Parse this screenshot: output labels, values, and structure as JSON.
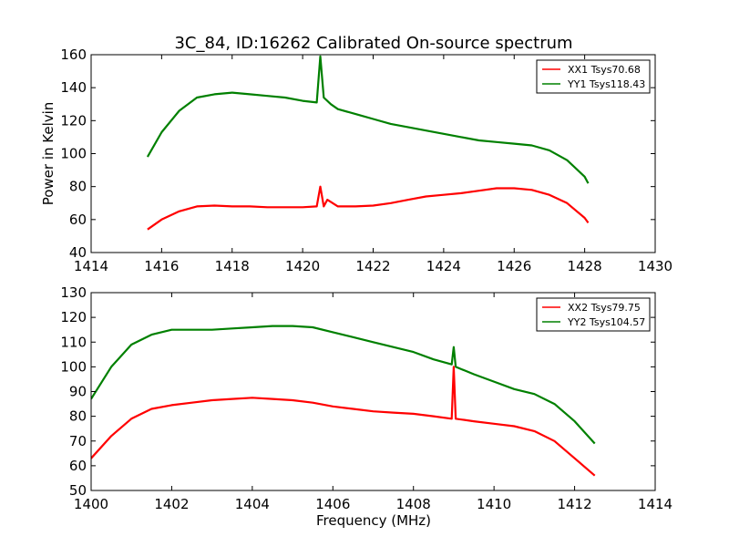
{
  "figure": {
    "title": "3C_84, ID:16262 Calibrated On-source spectrum",
    "xlabel": "Frequency (MHz)",
    "ylabel": "Power in Kelvin"
  },
  "chart_data": [
    {
      "type": "line",
      "grid": false,
      "legend_position": "top-right",
      "xlim": [
        1414,
        1430
      ],
      "ylim": [
        40,
        160
      ],
      "x_ticks": [
        "1414",
        "1416",
        "1418",
        "1420",
        "1422",
        "1424",
        "1426",
        "1428",
        "1430"
      ],
      "y_ticks": [
        "40",
        "60",
        "80",
        "100",
        "120",
        "140",
        "160"
      ],
      "series": [
        {
          "name": "XX1 Tsys70.68",
          "color": "#ff0000",
          "x": [
            1415.6,
            1416.0,
            1416.5,
            1417.0,
            1417.5,
            1418.0,
            1418.5,
            1419.0,
            1419.5,
            1420.0,
            1420.4,
            1420.5,
            1420.6,
            1420.7,
            1421.0,
            1421.5,
            1422.0,
            1422.5,
            1423.0,
            1423.5,
            1424.0,
            1424.5,
            1425.0,
            1425.5,
            1426.0,
            1426.5,
            1427.0,
            1427.5,
            1428.0,
            1428.1
          ],
          "values": [
            54,
            60,
            65,
            68,
            68.5,
            68,
            68,
            67.5,
            67.5,
            67.5,
            68,
            80,
            68,
            72,
            68,
            68,
            68.5,
            70,
            72,
            74,
            75,
            76,
            77.5,
            79,
            79,
            78,
            75,
            70,
            61,
            58
          ]
        },
        {
          "name": "YY1 Tsys118.43",
          "color": "#008000",
          "x": [
            1415.6,
            1416.0,
            1416.5,
            1417.0,
            1417.5,
            1418.0,
            1418.5,
            1419.0,
            1419.5,
            1420.0,
            1420.4,
            1420.5,
            1420.6,
            1420.8,
            1421.0,
            1421.5,
            1422.0,
            1422.5,
            1423.0,
            1423.5,
            1424.0,
            1424.5,
            1425.0,
            1425.5,
            1426.0,
            1426.5,
            1427.0,
            1427.5,
            1428.0,
            1428.1
          ],
          "values": [
            98,
            113,
            126,
            134,
            136,
            137,
            136,
            135,
            134,
            132,
            131,
            159,
            134,
            130,
            127,
            124,
            121,
            118,
            116,
            114,
            112,
            110,
            108,
            107,
            106,
            105,
            102,
            96,
            86,
            82
          ]
        }
      ]
    },
    {
      "type": "line",
      "grid": false,
      "legend_position": "top-right",
      "xlim": [
        1400,
        1414
      ],
      "ylim": [
        50,
        130
      ],
      "x_ticks": [
        "1400",
        "1402",
        "1404",
        "1406",
        "1408",
        "1410",
        "1412",
        "1414"
      ],
      "y_ticks": [
        "50",
        "60",
        "70",
        "80",
        "90",
        "100",
        "110",
        "120",
        "130"
      ],
      "series": [
        {
          "name": "XX2 Tsys79.75",
          "color": "#ff0000",
          "x": [
            1400.0,
            1400.5,
            1401.0,
            1401.5,
            1402.0,
            1402.5,
            1403.0,
            1403.5,
            1404.0,
            1404.5,
            1405.0,
            1405.5,
            1406.0,
            1406.5,
            1407.0,
            1407.5,
            1408.0,
            1408.5,
            1408.95,
            1409.0,
            1409.05,
            1409.5,
            1410.0,
            1410.5,
            1411.0,
            1411.5,
            1412.0,
            1412.5
          ],
          "values": [
            63,
            72,
            79,
            83,
            84.5,
            85.5,
            86.5,
            87,
            87.5,
            87,
            86.5,
            85.5,
            84,
            83,
            82,
            81.5,
            81,
            80,
            79,
            100,
            79,
            78,
            77,
            76,
            74,
            70,
            63,
            56
          ]
        },
        {
          "name": "YY2 Tsys104.57",
          "color": "#008000",
          "x": [
            1400.0,
            1400.5,
            1401.0,
            1401.5,
            1402.0,
            1402.5,
            1403.0,
            1403.5,
            1404.0,
            1404.5,
            1405.0,
            1405.5,
            1406.0,
            1406.5,
            1407.0,
            1407.5,
            1408.0,
            1408.5,
            1408.95,
            1409.0,
            1409.05,
            1409.5,
            1410.0,
            1410.5,
            1411.0,
            1411.5,
            1412.0,
            1412.5
          ],
          "values": [
            87,
            100,
            109,
            113,
            115,
            115,
            115,
            115.5,
            116,
            116.5,
            116.5,
            116,
            114,
            112,
            110,
            108,
            106,
            103,
            101,
            108,
            100,
            97,
            94,
            91,
            89,
            85,
            78,
            69
          ]
        }
      ]
    }
  ]
}
